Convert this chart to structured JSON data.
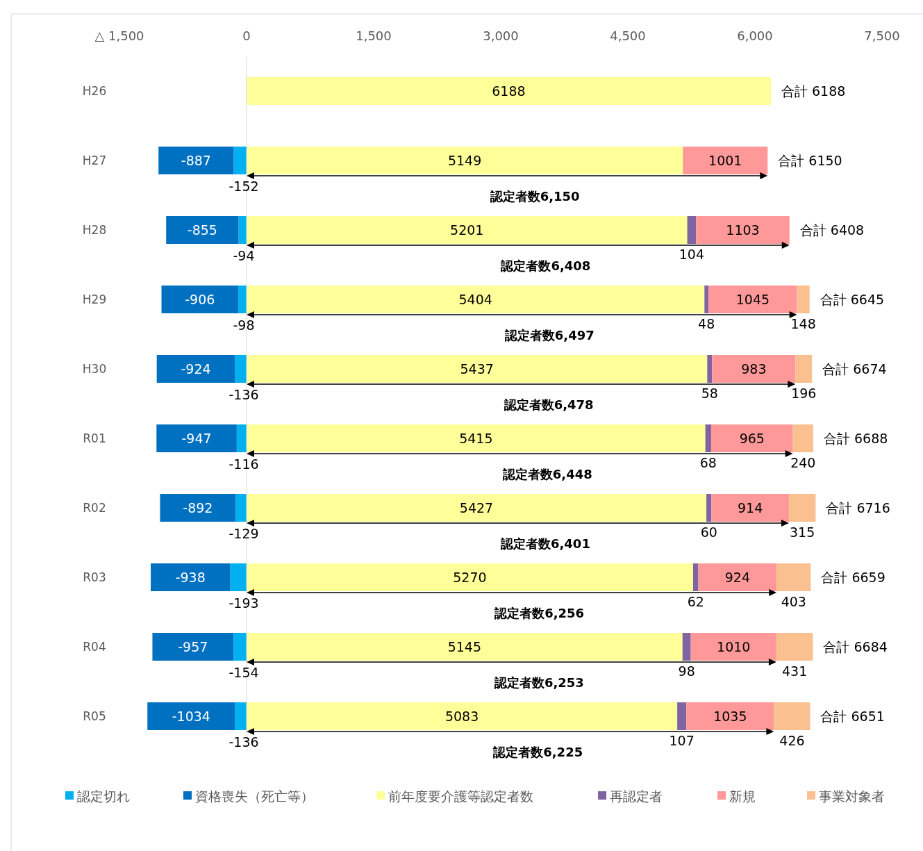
{
  "chart_data": {
    "type": "bar",
    "orientation": "horizontal",
    "stacked": true,
    "categories": [
      "H26",
      "H27",
      "H28",
      "H29",
      "H30",
      "R01",
      "R02",
      "R03",
      "R04",
      "R05"
    ],
    "series": [
      {
        "name": "認定切れ",
        "color": "#00b0f0",
        "values": [
          null,
          -152,
          -94,
          -98,
          -136,
          -116,
          -129,
          -193,
          -154,
          -136
        ]
      },
      {
        "name": "資格喪失（死亡等）",
        "color": "#0070c0",
        "values": [
          null,
          -887,
          -855,
          -906,
          -924,
          -947,
          -892,
          -938,
          -957,
          -1034
        ]
      },
      {
        "name": "前年度要介護等認定者数",
        "color": "#ffff99",
        "values": [
          6188,
          5149,
          5201,
          5404,
          5437,
          5415,
          5427,
          5270,
          5145,
          5083
        ]
      },
      {
        "name": "再認定者",
        "color": "#8064a2",
        "values": [
          null,
          null,
          104,
          48,
          58,
          68,
          60,
          62,
          98,
          107
        ]
      },
      {
        "name": "新規",
        "color": "#ff9999",
        "values": [
          null,
          1001,
          1103,
          1045,
          983,
          965,
          914,
          924,
          1010,
          1035
        ]
      },
      {
        "name": "事業対象者",
        "color": "#fac090",
        "values": [
          null,
          null,
          null,
          148,
          196,
          240,
          315,
          403,
          431,
          426
        ]
      }
    ],
    "xlim": [
      -1500,
      7500
    ],
    "xticks": [
      {
        "value": -1500,
        "label": "△ 1,500"
      },
      0,
      {
        "value": 1500,
        "label": "1,500"
      },
      {
        "value": 3000,
        "label": "3,000"
      },
      {
        "value": 4500,
        "label": "4,500"
      },
      {
        "value": 6000,
        "label": "6,000"
      },
      {
        "value": 7500,
        "label": "7,500"
      }
    ],
    "data_labels": true,
    "totals": [
      "合計 6188",
      "合計 6150",
      "合計 6408",
      "合計 6645",
      "合計 6674",
      "合計 6688",
      "合計 6716",
      "合計 6659",
      "合計 6684",
      "合計 6651"
    ],
    "annotations": [
      "認定者数6,150",
      "認定者数6,408",
      "認定者数6,497",
      "認定者数6,478",
      "認定者数6,448",
      "認定者数6,401",
      "認定者数6,256",
      "認定者数6,253",
      "認定者数6,225"
    ],
    "ref_lines": [
      {
        "axis": "x",
        "value": 0,
        "color": "#d9d9d9"
      }
    ],
    "legend": "bottom",
    "grid": false
  }
}
